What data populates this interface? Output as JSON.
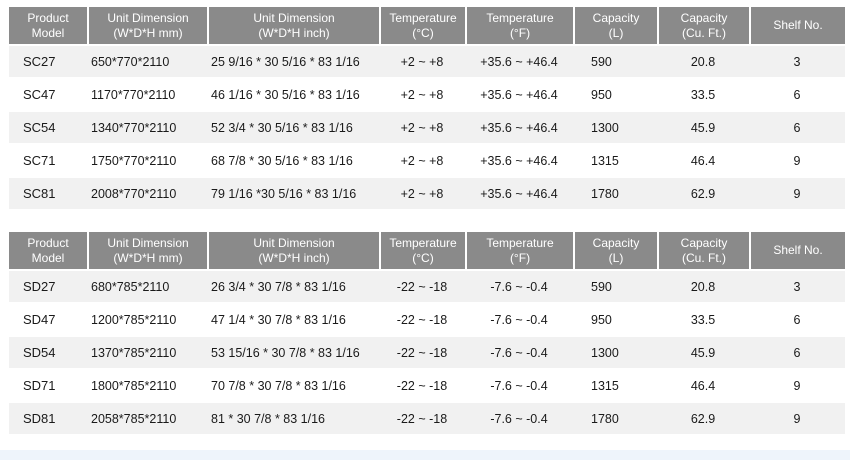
{
  "headers": [
    {
      "line1": "Product",
      "line2": "Model"
    },
    {
      "line1": "Unit Dimension",
      "line2": "(W*D*H mm)"
    },
    {
      "line1": "Unit Dimension",
      "line2": "(W*D*H inch)"
    },
    {
      "line1": "Temperature",
      "line2": "(°C)"
    },
    {
      "line1": "Temperature",
      "line2": "(°F)"
    },
    {
      "line1": "Capacity",
      "line2": "(L)"
    },
    {
      "line1": "Capacity",
      "line2": "(Cu. Ft.)"
    },
    {
      "line1": "Shelf No.",
      "line2": ""
    }
  ],
  "table_sc": {
    "rows": [
      {
        "model": "SC27",
        "dim_mm": "650*770*2110",
        "dim_inch": "25 9/16 * 30 5/16 * 83 1/16",
        "temp_c": "+2 ~ +8",
        "temp_f": "+35.6 ~ +46.4",
        "cap_l": "590",
        "cap_ft": "20.8",
        "shelf": "3"
      },
      {
        "model": "SC47",
        "dim_mm": "1170*770*2110",
        "dim_inch": "46 1/16  * 30 5/16 * 83 1/16",
        "temp_c": "+2 ~ +8",
        "temp_f": "+35.6 ~ +46.4",
        "cap_l": "950",
        "cap_ft": "33.5",
        "shelf": "6"
      },
      {
        "model": "SC54",
        "dim_mm": "1340*770*2110",
        "dim_inch": "52 3/4 * 30 5/16 * 83 1/16",
        "temp_c": "+2 ~ +8",
        "temp_f": "+35.6 ~ +46.4",
        "cap_l": "1300",
        "cap_ft": "45.9",
        "shelf": "6"
      },
      {
        "model": "SC71",
        "dim_mm": "1750*770*2110",
        "dim_inch": "68 7/8 * 30 5/16 * 83 1/16",
        "temp_c": "+2 ~ +8",
        "temp_f": "+35.6 ~ +46.4",
        "cap_l": "1315",
        "cap_ft": "46.4",
        "shelf": "9"
      },
      {
        "model": "SC81",
        "dim_mm": "2008*770*2110",
        "dim_inch": "79 1/16 *30 5/16 * 83 1/16",
        "temp_c": "+2 ~ +8",
        "temp_f": "+35.6 ~ +46.4",
        "cap_l": "1780",
        "cap_ft": "62.9",
        "shelf": "9"
      }
    ]
  },
  "table_sd": {
    "rows": [
      {
        "model": "SD27",
        "dim_mm": "680*785*2110",
        "dim_inch": "26 3/4 * 30 7/8 * 83 1/16",
        "temp_c": "-22 ~ -18",
        "temp_f": "-7.6 ~ -0.4",
        "cap_l": "590",
        "cap_ft": "20.8",
        "shelf": "3"
      },
      {
        "model": "SD47",
        "dim_mm": "1200*785*2110",
        "dim_inch": "47 1/4 * 30 7/8 * 83 1/16",
        "temp_c": "-22 ~ -18",
        "temp_f": "-7.6 ~ -0.4",
        "cap_l": "950",
        "cap_ft": "33.5",
        "shelf": "6"
      },
      {
        "model": "SD54",
        "dim_mm": "1370*785*2110",
        "dim_inch": "53 15/16 * 30 7/8 * 83 1/16",
        "temp_c": "-22 ~ -18",
        "temp_f": "-7.6 ~ -0.4",
        "cap_l": "1300",
        "cap_ft": "45.9",
        "shelf": "6"
      },
      {
        "model": "SD71",
        "dim_mm": "1800*785*2110",
        "dim_inch": "70 7/8 * 30 7/8 * 83 1/16",
        "temp_c": "-22 ~ -18",
        "temp_f": "-7.6 ~ -0.4",
        "cap_l": "1315",
        "cap_ft": "46.4",
        "shelf": "9"
      },
      {
        "model": "SD81",
        "dim_mm": "2058*785*2110",
        "dim_inch": "81 * 30 7/8 * 83 1/16",
        "temp_c": "-22 ~ -18",
        "temp_f": "-7.6 ~ -0.4",
        "cap_l": "1780",
        "cap_ft": "62.9",
        "shelf": "9"
      }
    ]
  },
  "colors": {
    "header_bg": "#8a8a8a",
    "row_alt_bg": "#f1f1f1",
    "bottom_band": "#eef4fb"
  }
}
